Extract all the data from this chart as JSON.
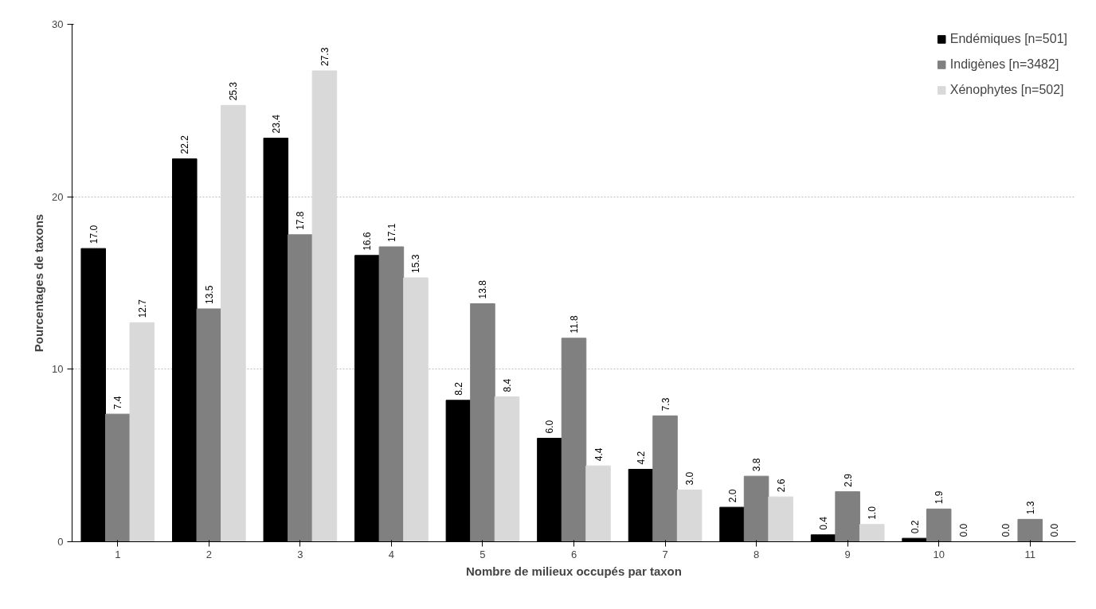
{
  "chart_data": {
    "type": "bar",
    "xlabel": "Nombre de milieux occupés par taxon",
    "ylabel": "Pourcentages de taxons",
    "categories": [
      "1",
      "2",
      "3",
      "4",
      "5",
      "6",
      "7",
      "8",
      "9",
      "10",
      "11"
    ],
    "series": [
      {
        "name": "Endémiques [n=501]",
        "color": "#000000",
        "values": [
          17.0,
          22.2,
          23.4,
          16.6,
          8.2,
          6.0,
          4.2,
          2.0,
          0.4,
          0.2,
          0.0
        ],
        "value_labels": [
          "17.0",
          "22.2",
          "23.4",
          "16.6",
          "8.2",
          "6.0",
          "4.2",
          "2.0",
          "0.4",
          "0.2",
          "0.0"
        ]
      },
      {
        "name": "Indigènes [n=3482]",
        "color": "#808080",
        "values": [
          7.4,
          13.5,
          17.8,
          17.1,
          13.8,
          11.8,
          7.3,
          3.8,
          2.9,
          1.9,
          1.3
        ],
        "value_labels": [
          "7.4",
          "13.5",
          "17.8",
          "17.1",
          "13.8",
          "11.8",
          "7.3",
          "3.8",
          "2.9",
          "1.9",
          "1.3"
        ]
      },
      {
        "name": "Xénophytes [n=502]",
        "color": "#d9d9d9",
        "values": [
          12.7,
          25.3,
          27.3,
          15.3,
          8.4,
          4.4,
          3.0,
          2.6,
          1.0,
          0.0,
          0.0
        ],
        "value_labels": [
          "12.7",
          "25.3",
          "27.3",
          "15.3",
          "8.4",
          "4.4",
          "3.0",
          "2.6",
          "1.0",
          "0.0",
          "0.0"
        ]
      }
    ],
    "ylim": [
      0,
      30
    ],
    "yticks": [
      0,
      10,
      20,
      30
    ],
    "grid": "y",
    "legend": "top right"
  }
}
